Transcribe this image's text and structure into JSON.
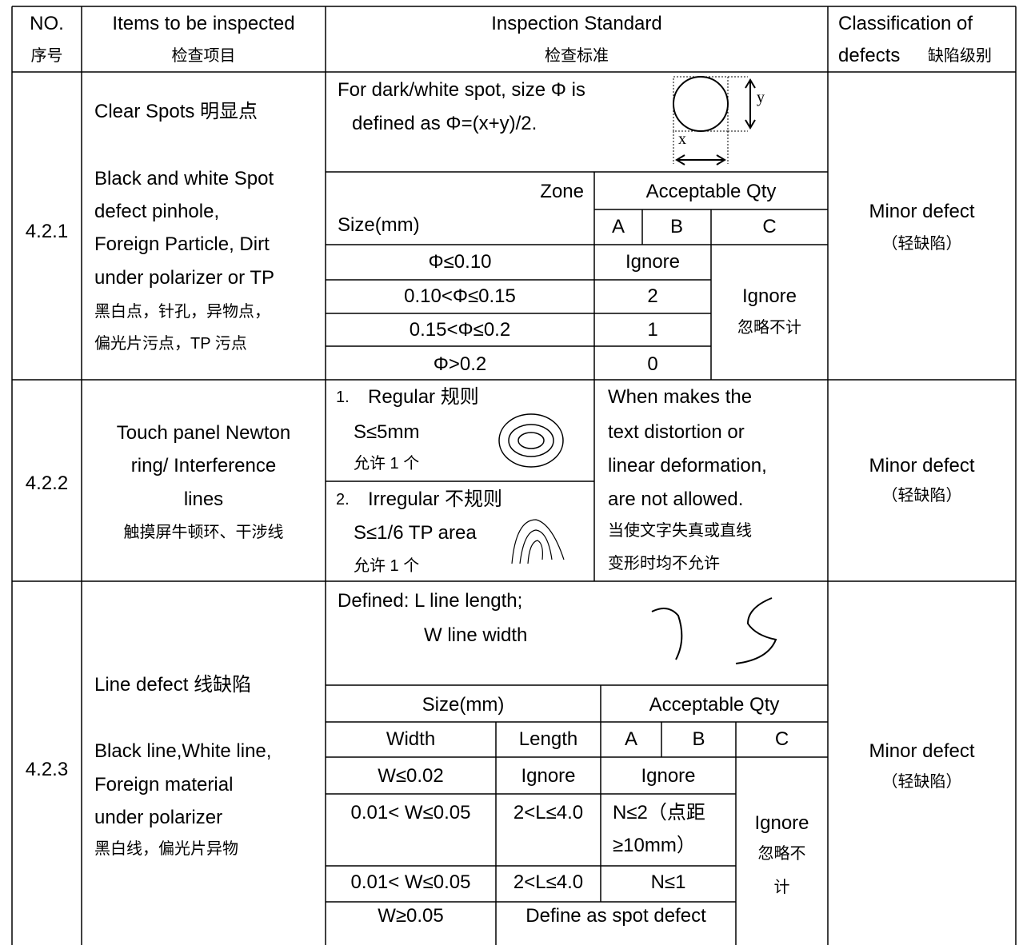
{
  "header": {
    "no": [
      "NO.",
      "序号"
    ],
    "items": [
      "Items to be inspected",
      "检查项目"
    ],
    "standard": [
      "Inspection Standard",
      "检查标准"
    ],
    "classification": [
      "Classification of",
      "defects",
      "缺陷级别"
    ]
  },
  "rows": [
    {
      "no": "4.2.1",
      "items": [
        "Clear Spots 明显点",
        "Black and white Spot",
        "defect pinhole,",
        "Foreign Particle, Dirt",
        "under polarizer or TP",
        "黑白点，针孔，异物点，",
        "偏光片污点，TP 污点"
      ],
      "standard": {
        "definition": [
          "For dark/white spot, size Φ is",
          "defined as Φ=(x+y)/2."
        ],
        "diagram": {
          "x": "x",
          "y": "y"
        },
        "zone": "Zone",
        "size": "Size(mm)",
        "acceptable": "Acceptable Qty",
        "zones": [
          "A",
          "B",
          "C"
        ],
        "limits": [
          [
            "Φ≤0.10",
            "Ignore"
          ],
          [
            "0.10<Φ≤0.15",
            "2"
          ],
          [
            "0.15<Φ≤0.2",
            "1"
          ],
          [
            "Φ>0.2",
            "0"
          ]
        ],
        "zone_c": [
          "Ignore",
          "忽略不计"
        ]
      },
      "classification": [
        "Minor defect",
        "（轻缺陷）"
      ]
    },
    {
      "no": "4.2.2",
      "items": [
        "Touch panel Newton",
        "ring/ Interference",
        "lines",
        "触摸屏牛顿环、干涉线"
      ],
      "standard": {
        "regular": [
          "1.",
          "Regular 规则",
          "S≤5mm",
          "允许 1 个"
        ],
        "irregular": [
          "2.",
          "Irregular 不规则",
          "S≤1/6 TP area",
          "允许 1 个"
        ],
        "note": [
          "When makes the",
          "text distortion or",
          "linear deformation,",
          "are not allowed.",
          "当使文字失真或直线",
          "变形时均不允许"
        ]
      },
      "classification": [
        "Minor defect",
        "（轻缺陷）"
      ]
    },
    {
      "no": "4.2.3",
      "items": [
        "Line defect 线缺陷",
        "Black line,White line,",
        "Foreign material",
        "under polarizer",
        "黑白线，偏光片异物"
      ],
      "standard": {
        "definition": [
          "Defined: L line length;",
          "W line width"
        ],
        "size": "Size(mm)",
        "acceptable": "Acceptable Qty",
        "columns": [
          "Width",
          "Length",
          "A",
          "B",
          "C"
        ],
        "limits": [
          [
            "W≤0.02",
            "Ignore",
            "Ignore"
          ],
          [
            "0.01< W≤0.05",
            "2<L≤4.0",
            "N≤2（点距",
            "≥10mm）"
          ],
          [
            "0.01< W≤0.05",
            "2<L≤4.0",
            "N≤1"
          ],
          [
            "W≥0.05",
            "Define as spot defect"
          ]
        ],
        "zone_c": [
          "Ignore",
          "忽略不",
          "计"
        ]
      },
      "classification": [
        "Minor defect",
        "（轻缺陷）"
      ]
    }
  ]
}
